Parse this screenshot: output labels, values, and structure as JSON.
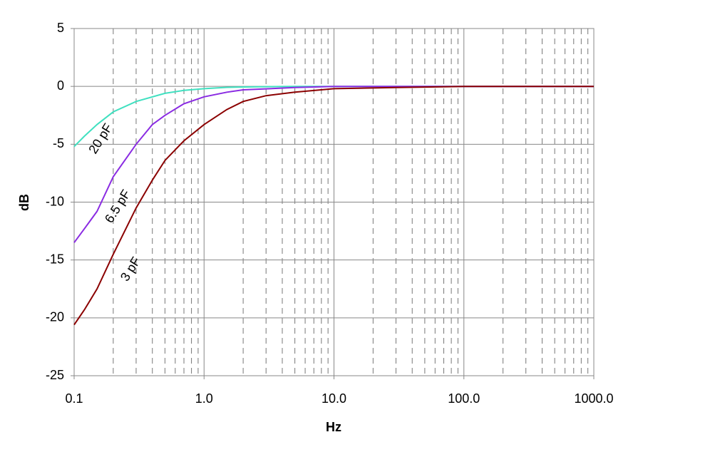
{
  "chart_data": {
    "type": "line",
    "x_label": "Hz",
    "y_label": "dB",
    "xscale": "log",
    "xlim": [
      0.1,
      1000
    ],
    "ylim": [
      -25,
      5
    ],
    "xticks": [
      0.1,
      {
        "value": 1,
        "label": "1.0"
      },
      {
        "value": 10,
        "label": "10.0"
      },
      {
        "value": 100,
        "label": "100.0"
      },
      {
        "value": 1000,
        "label": "1000.0"
      }
    ],
    "yticks": [
      5,
      0,
      -5,
      -10,
      -15,
      -20,
      -25
    ],
    "grid": true,
    "minor_grid": true,
    "series": [
      {
        "name": "20 pF",
        "color": "#40e0c0",
        "x": [
          0.1,
          0.12,
          0.15,
          0.2,
          0.3,
          0.5,
          0.7,
          1,
          1.5,
          2,
          5,
          100,
          1000
        ],
        "values": [
          -5.2,
          -4.3,
          -3.3,
          -2.2,
          -1.3,
          -0.6,
          -0.35,
          -0.2,
          -0.08,
          -0.05,
          0,
          0,
          0
        ]
      },
      {
        "name": "6.5 pF",
        "color": "#8a2be2",
        "x": [
          0.1,
          0.12,
          0.15,
          0.2,
          0.3,
          0.4,
          0.5,
          0.7,
          1,
          1.5,
          2,
          5,
          10,
          100,
          1000
        ],
        "values": [
          -13.5,
          -12.3,
          -10.8,
          -7.8,
          -5.0,
          -3.3,
          -2.5,
          -1.5,
          -0.9,
          -0.5,
          -0.3,
          -0.1,
          0,
          0,
          0
        ]
      },
      {
        "name": "3 pF",
        "color": "#8b0000",
        "x": [
          0.1,
          0.12,
          0.15,
          0.2,
          0.3,
          0.4,
          0.5,
          0.7,
          1,
          1.5,
          2,
          3,
          5,
          10,
          30,
          100,
          1000
        ],
        "values": [
          -20.6,
          -19.3,
          -17.5,
          -14.5,
          -10.5,
          -8.1,
          -6.4,
          -4.7,
          -3.3,
          -2.0,
          -1.3,
          -0.8,
          -0.5,
          -0.2,
          -0.1,
          0,
          0
        ]
      }
    ]
  }
}
